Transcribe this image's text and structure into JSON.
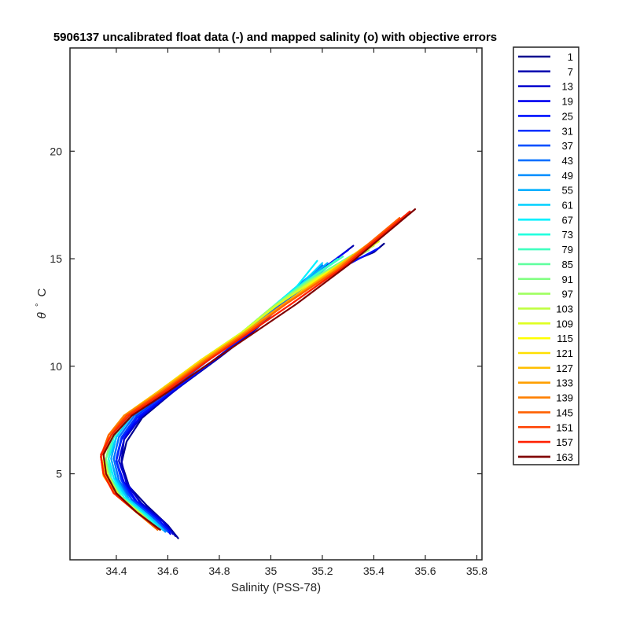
{
  "chart_data": {
    "type": "line",
    "title": "5906137 uncalibrated float data (-) and mapped salinity (o) with objective errors",
    "xlabel": "Salinity (PSS-78)",
    "ylabel_symbol": "θ",
    "ylabel_degree": "°",
    "ylabel_unit": "C",
    "xlim": [
      34.22,
      35.82
    ],
    "ylim": [
      1.0,
      24.8
    ],
    "xticks": [
      34.4,
      34.6,
      34.8,
      35,
      35.2,
      35.4,
      35.6,
      35.8
    ],
    "yticks": [
      5,
      10,
      15,
      20
    ],
    "xtick_labels": [
      "34.4",
      "34.6",
      "34.8",
      "35",
      "35.2",
      "35.4",
      "35.6",
      "35.8"
    ],
    "ytick_labels": [
      "5",
      "10",
      "15",
      "20"
    ],
    "grid": false,
    "legend_position": "outside-right",
    "colormap": "jet",
    "series": [
      {
        "name": "1",
        "color": "#00008f",
        "x": [
          34.64,
          34.6,
          34.52,
          34.45,
          34.42,
          34.44,
          34.5,
          34.62,
          34.78,
          34.92,
          35.02,
          35.1,
          35.22,
          35.4,
          35.44
        ],
        "y": [
          2.0,
          2.6,
          3.5,
          4.4,
          5.5,
          6.5,
          7.6,
          8.8,
          10.3,
          11.6,
          12.6,
          13.4,
          14.4,
          15.3,
          15.7
        ]
      },
      {
        "name": "7",
        "color": "#0000b0",
        "x": [
          34.63,
          34.59,
          34.5,
          34.44,
          34.42,
          34.43,
          34.5,
          34.63,
          34.8,
          34.94,
          35.03,
          35.1,
          35.2,
          35.32
        ],
        "y": [
          2.1,
          2.7,
          3.6,
          4.5,
          5.6,
          6.6,
          7.7,
          8.9,
          10.4,
          11.7,
          12.7,
          13.5,
          14.5,
          15.6
        ]
      },
      {
        "name": "13",
        "color": "#0000d0",
        "x": [
          34.62,
          34.58,
          34.49,
          34.44,
          34.41,
          34.43,
          34.5,
          34.62,
          34.78,
          34.93,
          35.02,
          35.1,
          35.26,
          35.38
        ],
        "y": [
          2.2,
          2.8,
          3.7,
          4.6,
          5.6,
          6.6,
          7.7,
          8.8,
          10.3,
          11.6,
          12.6,
          13.4,
          14.6,
          15.4
        ]
      },
      {
        "name": "19",
        "color": "#0000f0",
        "x": [
          34.61,
          34.57,
          34.48,
          34.43,
          34.4,
          34.42,
          34.49,
          34.6,
          34.77,
          34.92,
          35.01,
          35.1,
          35.22,
          35.3
        ],
        "y": [
          2.2,
          2.8,
          3.7,
          4.6,
          5.6,
          6.6,
          7.6,
          8.7,
          10.2,
          11.6,
          12.6,
          13.5,
          14.7,
          15.4
        ]
      },
      {
        "name": "25",
        "color": "#0010ff",
        "x": [
          34.61,
          34.56,
          34.47,
          34.42,
          34.4,
          34.42,
          34.48,
          34.6,
          34.77,
          34.92,
          35.02,
          35.12,
          35.28,
          35.42
        ],
        "y": [
          2.3,
          2.9,
          3.8,
          4.7,
          5.6,
          6.6,
          7.6,
          8.7,
          10.2,
          11.6,
          12.6,
          13.5,
          14.6,
          15.5
        ]
      },
      {
        "name": "31",
        "color": "#0030ff",
        "x": [
          34.6,
          34.55,
          34.46,
          34.42,
          34.4,
          34.42,
          34.48,
          34.6,
          34.76,
          34.91,
          35.01,
          35.1,
          35.24
        ],
        "y": [
          2.3,
          2.9,
          3.8,
          4.7,
          5.7,
          6.7,
          7.7,
          8.8,
          10.3,
          11.6,
          12.6,
          13.6,
          14.8
        ]
      },
      {
        "name": "37",
        "color": "#0050ff",
        "x": [
          34.6,
          34.55,
          34.46,
          34.41,
          34.39,
          34.41,
          34.47,
          34.59,
          34.76,
          34.91,
          35.01,
          35.12,
          35.3
        ],
        "y": [
          2.3,
          2.9,
          3.8,
          4.7,
          5.7,
          6.7,
          7.7,
          8.8,
          10.3,
          11.6,
          12.6,
          13.6,
          14.9
        ]
      },
      {
        "name": "43",
        "color": "#0070ff",
        "x": [
          34.59,
          34.54,
          34.45,
          34.41,
          34.39,
          34.41,
          34.47,
          34.59,
          34.75,
          34.9,
          35.0,
          35.08,
          35.2
        ],
        "y": [
          2.3,
          2.9,
          3.8,
          4.7,
          5.7,
          6.7,
          7.7,
          8.8,
          10.3,
          11.6,
          12.6,
          13.5,
          14.7
        ]
      },
      {
        "name": "49",
        "color": "#0090ff",
        "x": [
          34.59,
          34.54,
          34.45,
          34.4,
          34.38,
          34.4,
          34.46,
          34.58,
          34.75,
          34.9,
          35.0,
          35.1,
          35.24
        ],
        "y": [
          2.3,
          2.9,
          3.8,
          4.7,
          5.7,
          6.7,
          7.7,
          8.8,
          10.3,
          11.6,
          12.6,
          13.5,
          14.8
        ]
      },
      {
        "name": "55",
        "color": "#00b0ff",
        "x": [
          34.58,
          34.53,
          34.44,
          34.4,
          34.38,
          34.4,
          34.46,
          34.58,
          34.75,
          34.9,
          35.0,
          35.1,
          35.22
        ],
        "y": [
          2.4,
          3.0,
          3.9,
          4.8,
          5.7,
          6.7,
          7.7,
          8.8,
          10.3,
          11.6,
          12.7,
          13.6,
          14.8
        ]
      },
      {
        "name": "61",
        "color": "#00d0ff",
        "x": [
          34.58,
          34.53,
          34.44,
          34.39,
          34.37,
          34.4,
          34.46,
          34.58,
          34.74,
          34.9,
          35.0,
          35.1,
          35.2
        ],
        "y": [
          2.4,
          3.0,
          3.9,
          4.8,
          5.7,
          6.7,
          7.7,
          8.8,
          10.3,
          11.6,
          12.7,
          13.6,
          14.8
        ]
      },
      {
        "name": "67",
        "color": "#00f0ff",
        "x": [
          34.57,
          34.52,
          34.43,
          34.39,
          34.37,
          34.39,
          34.45,
          34.57,
          34.74,
          34.89,
          35.0,
          35.1,
          35.18
        ],
        "y": [
          2.4,
          3.0,
          3.9,
          4.8,
          5.7,
          6.7,
          7.7,
          8.8,
          10.3,
          11.6,
          12.7,
          13.7,
          14.9
        ]
      },
      {
        "name": "73",
        "color": "#20ffdf",
        "x": [
          34.57,
          34.52,
          34.43,
          34.38,
          34.37,
          34.39,
          34.45,
          34.57,
          34.74,
          34.89,
          35.0,
          35.12,
          35.26
        ],
        "y": [
          2.4,
          3.0,
          3.9,
          4.8,
          5.7,
          6.7,
          7.7,
          8.8,
          10.3,
          11.6,
          12.7,
          13.8,
          15.0
        ]
      },
      {
        "name": "79",
        "color": "#40ffbf",
        "x": [
          34.56,
          34.51,
          34.42,
          34.38,
          34.36,
          34.39,
          34.45,
          34.57,
          34.74,
          34.89,
          35.0,
          35.12,
          35.28
        ],
        "y": [
          2.4,
          3.0,
          3.9,
          4.8,
          5.7,
          6.7,
          7.7,
          8.8,
          10.3,
          11.6,
          12.7,
          13.8,
          15.1
        ]
      },
      {
        "name": "85",
        "color": "#60ff9f",
        "x": [
          34.56,
          34.51,
          34.42,
          34.37,
          34.36,
          34.38,
          34.44,
          34.56,
          34.73,
          34.89,
          35.0,
          35.14,
          35.32
        ],
        "y": [
          2.4,
          3.0,
          3.9,
          4.8,
          5.7,
          6.7,
          7.7,
          8.8,
          10.3,
          11.6,
          12.7,
          13.9,
          15.2
        ]
      },
      {
        "name": "91",
        "color": "#80ff80",
        "x": [
          34.56,
          34.5,
          34.41,
          34.37,
          34.36,
          34.38,
          34.44,
          34.56,
          34.73,
          34.89,
          35.0,
          35.14,
          35.34
        ],
        "y": [
          2.4,
          3.0,
          3.9,
          4.8,
          5.7,
          6.7,
          7.7,
          8.8,
          10.3,
          11.6,
          12.7,
          13.9,
          15.3
        ]
      },
      {
        "name": "97",
        "color": "#9fff60",
        "x": [
          34.55,
          34.5,
          34.41,
          34.37,
          34.35,
          34.38,
          34.44,
          34.56,
          34.73,
          34.89,
          35.0,
          35.16,
          35.38
        ],
        "y": [
          2.5,
          3.1,
          4.0,
          4.9,
          5.8,
          6.8,
          7.7,
          8.8,
          10.3,
          11.6,
          12.7,
          14.0,
          15.4
        ]
      },
      {
        "name": "103",
        "color": "#bfff40",
        "x": [
          34.55,
          34.5,
          34.41,
          34.37,
          34.35,
          34.37,
          34.43,
          34.56,
          34.73,
          34.89,
          35.02,
          35.18,
          35.4
        ],
        "y": [
          2.5,
          3.1,
          4.0,
          4.9,
          5.8,
          6.8,
          7.7,
          8.8,
          10.3,
          11.6,
          12.8,
          14.1,
          15.6
        ]
      },
      {
        "name": "109",
        "color": "#dfff20",
        "x": [
          34.55,
          34.49,
          34.4,
          34.36,
          34.35,
          34.37,
          34.43,
          34.56,
          34.73,
          34.89,
          35.02,
          35.18,
          35.42
        ],
        "y": [
          2.5,
          3.1,
          4.0,
          4.9,
          5.8,
          6.8,
          7.7,
          8.8,
          10.3,
          11.6,
          12.8,
          14.1,
          15.8
        ]
      },
      {
        "name": "115",
        "color": "#ffff00",
        "x": [
          34.55,
          34.49,
          34.4,
          34.36,
          34.34,
          34.37,
          34.43,
          34.56,
          34.73,
          34.9,
          35.04,
          35.2,
          35.42
        ],
        "y": [
          2.5,
          3.1,
          4.0,
          4.9,
          5.8,
          6.8,
          7.7,
          8.8,
          10.3,
          11.6,
          12.8,
          14.2,
          16.0
        ]
      },
      {
        "name": "121",
        "color": "#ffdf00",
        "x": [
          34.55,
          34.49,
          34.4,
          34.36,
          34.34,
          34.37,
          34.43,
          34.56,
          34.73,
          34.9,
          35.04,
          35.22,
          35.44
        ],
        "y": [
          2.5,
          3.1,
          4.0,
          4.9,
          5.8,
          6.8,
          7.7,
          8.8,
          10.3,
          11.6,
          12.8,
          14.3,
          16.2
        ]
      },
      {
        "name": "127",
        "color": "#ffbf00",
        "x": [
          34.56,
          34.49,
          34.4,
          34.35,
          34.34,
          34.37,
          34.43,
          34.56,
          34.74,
          34.9,
          35.04,
          35.22,
          35.46
        ],
        "y": [
          2.4,
          3.1,
          4.0,
          4.9,
          5.8,
          6.8,
          7.7,
          8.8,
          10.3,
          11.6,
          12.8,
          14.3,
          16.4
        ]
      },
      {
        "name": "133",
        "color": "#ff9f00",
        "x": [
          34.56,
          34.48,
          34.39,
          34.35,
          34.34,
          34.37,
          34.43,
          34.57,
          34.74,
          34.9,
          35.05,
          35.24,
          35.48
        ],
        "y": [
          2.4,
          3.2,
          4.1,
          5.0,
          5.8,
          6.8,
          7.7,
          8.8,
          10.3,
          11.6,
          12.9,
          14.4,
          16.6
        ]
      },
      {
        "name": "139",
        "color": "#ff8000",
        "x": [
          34.56,
          34.48,
          34.39,
          34.35,
          34.34,
          34.37,
          34.43,
          34.57,
          34.75,
          34.91,
          35.06,
          35.26,
          35.5
        ],
        "y": [
          2.4,
          3.2,
          4.1,
          5.0,
          5.8,
          6.8,
          7.7,
          8.8,
          10.3,
          11.6,
          12.9,
          14.5,
          16.8
        ]
      },
      {
        "name": "145",
        "color": "#ff6000",
        "x": [
          34.56,
          34.48,
          34.39,
          34.35,
          34.34,
          34.37,
          34.44,
          34.58,
          34.75,
          34.91,
          35.06,
          35.26,
          35.5
        ],
        "y": [
          2.4,
          3.2,
          4.1,
          5.0,
          5.8,
          6.8,
          7.7,
          8.8,
          10.3,
          11.6,
          12.9,
          14.5,
          16.9
        ]
      },
      {
        "name": "151",
        "color": "#ff4000",
        "x": [
          34.57,
          34.48,
          34.39,
          34.35,
          34.34,
          34.38,
          34.44,
          34.58,
          34.76,
          34.92,
          35.08,
          35.28,
          35.52
        ],
        "y": [
          2.4,
          3.2,
          4.1,
          5.0,
          5.8,
          6.8,
          7.7,
          8.8,
          10.3,
          11.6,
          12.9,
          14.6,
          17.0
        ]
      },
      {
        "name": "157",
        "color": "#ff2000",
        "x": [
          34.57,
          34.48,
          34.39,
          34.35,
          34.34,
          34.38,
          34.45,
          34.59,
          34.76,
          34.92,
          35.08,
          35.28,
          35.54
        ],
        "y": [
          2.4,
          3.2,
          4.1,
          5.0,
          5.9,
          6.8,
          7.7,
          8.8,
          10.3,
          11.6,
          12.9,
          14.6,
          17.2
        ]
      },
      {
        "name": "163",
        "color": "#800000",
        "x": [
          34.57,
          34.48,
          34.4,
          34.36,
          34.35,
          34.39,
          34.46,
          34.6,
          34.78,
          34.94,
          35.1,
          35.3,
          35.56
        ],
        "y": [
          2.4,
          3.2,
          4.1,
          5.0,
          5.9,
          6.8,
          7.7,
          8.8,
          10.3,
          11.6,
          12.9,
          14.7,
          17.3
        ]
      }
    ]
  }
}
